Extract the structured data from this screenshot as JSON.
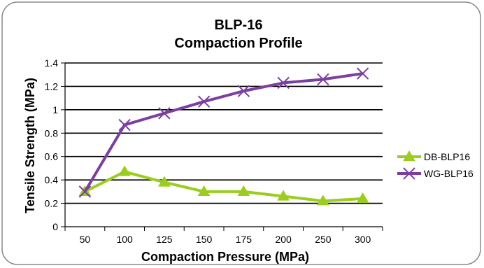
{
  "chart_data": {
    "type": "line",
    "title_lines": [
      "BLP-16",
      "Compaction Profile"
    ],
    "xlabel": "Compaction Pressure (MPa)",
    "ylabel": "Tensile Strength (MPa)",
    "categories": [
      "50",
      "100",
      "125",
      "150",
      "175",
      "200",
      "250",
      "300"
    ],
    "y_ticks": [
      "0",
      "0.2",
      "0.4",
      "0.6",
      "0.8",
      "1",
      "1.2",
      "1.4"
    ],
    "ylim": [
      0,
      1.4
    ],
    "grid": true,
    "legend_position": "right",
    "series": [
      {
        "name": "DB-BLP16",
        "color": "#9acd1e",
        "marker": "triangle",
        "values": [
          0.3,
          0.47,
          0.38,
          0.3,
          0.3,
          0.26,
          0.22,
          0.24
        ]
      },
      {
        "name": "WG-BLP16",
        "color": "#7b3fa0",
        "marker": "x",
        "values": [
          0.3,
          0.87,
          0.97,
          1.07,
          1.16,
          1.23,
          1.26,
          1.31
        ]
      }
    ]
  }
}
